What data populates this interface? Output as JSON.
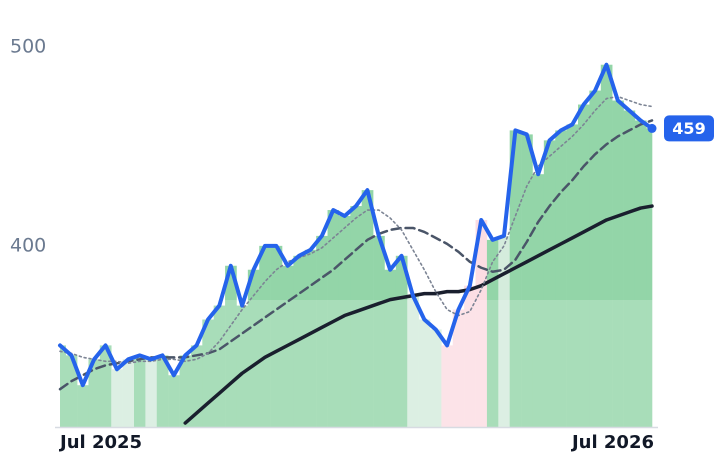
{
  "chart_data": {
    "type": "line",
    "categories": [
      "Jul 2025",
      null,
      null,
      null,
      null,
      null,
      null,
      null,
      null,
      null,
      null,
      null,
      null,
      null,
      null,
      null,
      null,
      null,
      null,
      null,
      null,
      null,
      null,
      null,
      null,
      null,
      null,
      null,
      null,
      null,
      null,
      null,
      null,
      null,
      null,
      null,
      null,
      null,
      null,
      null,
      null,
      null,
      null,
      null,
      null,
      null,
      null,
      null,
      null,
      null,
      null,
      null,
      "Jul 2026"
    ],
    "series": [
      {
        "color": "#2563eb",
        "style": "solid",
        "width": 4,
        "values": [
          350,
          345,
          330,
          343,
          350,
          338,
          343,
          345,
          343,
          345,
          335,
          345,
          350,
          363,
          370,
          390,
          370,
          388,
          400,
          400,
          390,
          395,
          398,
          405,
          418,
          415,
          420,
          428,
          405,
          388,
          395,
          375,
          363,
          358,
          350,
          368,
          380,
          413,
          403,
          405,
          458,
          456,
          436,
          453,
          458,
          461,
          471,
          478,
          491,
          473,
          468,
          463,
          459
        ]
      },
      {
        "color": "#7c8494",
        "style": "dotted",
        "width": 1.6,
        "values": [
          347,
          346,
          344,
          343,
          342,
          342,
          341,
          342,
          342,
          343,
          343,
          342,
          343,
          346,
          352,
          360,
          368,
          375,
          382,
          388,
          392,
          394,
          396,
          399,
          404,
          409,
          414,
          418,
          418,
          414,
          408,
          398,
          388,
          377,
          368,
          365,
          367,
          378,
          392,
          400,
          415,
          430,
          440,
          445,
          450,
          455,
          461,
          468,
          474,
          475,
          473,
          471,
          470
        ]
      },
      {
        "color": "#4a5568",
        "style": "dashed",
        "width": 2.5,
        "values": [
          328,
          332,
          335,
          338,
          340,
          341,
          342,
          343,
          344,
          344,
          344,
          344,
          345,
          346,
          348,
          352,
          356,
          360,
          364,
          368,
          372,
          376,
          380,
          384,
          388,
          393,
          398,
          403,
          406,
          408,
          409,
          409,
          407,
          404,
          401,
          397,
          392,
          389,
          387,
          388,
          393,
          402,
          412,
          420,
          427,
          433,
          440,
          446,
          451,
          455,
          458,
          461,
          463
        ]
      },
      {
        "color": "#1a1f2e",
        "style": "solid",
        "width": 3.5,
        "values": [
          null,
          null,
          null,
          null,
          null,
          null,
          null,
          null,
          null,
          null,
          null,
          311,
          316,
          321,
          326,
          331,
          336,
          340,
          344,
          347,
          350,
          353,
          356,
          359,
          362,
          365,
          367,
          369,
          371,
          373,
          374,
          375,
          376,
          376,
          377,
          377,
          378,
          380,
          383,
          386,
          389,
          392,
          395,
          398,
          401,
          404,
          407,
          410,
          413,
          415,
          417,
          419,
          420
        ]
      }
    ],
    "area_colors": [
      "#93d5a8",
      "#93d5a8",
      "#93d5a8",
      "#93d5a8",
      "#93d5a8",
      "#d4ecdc",
      "#d4ecdc",
      "#93d5a8",
      "#d4ecdc",
      "#93d5a8",
      "#93d5a8",
      "#93d5a8",
      "#93d5a8",
      "#93d5a8",
      "#93d5a8",
      "#93d5a8",
      "#93d5a8",
      "#93d5a8",
      "#93d5a8",
      "#93d5a8",
      "#93d5a8",
      "#93d5a8",
      "#93d5a8",
      "#93d5a8",
      "#93d5a8",
      "#93d5a8",
      "#93d5a8",
      "#93d5a8",
      "#93d5a8",
      "#93d5a8",
      "#93d5a8",
      "#d4ecdc",
      "#d4ecdc",
      "#d4ecdc",
      "#fcdde3",
      "#fcdde3",
      "#fcdde3",
      "#fcdde3",
      "#93d5a8",
      "#d4ecdc",
      "#93d5a8",
      "#93d5a8",
      "#93d5a8",
      "#93d5a8",
      "#93d5a8",
      "#93d5a8",
      "#93d5a8",
      "#93d5a8",
      "#93d5a8",
      "#93d5a8",
      "#93d5a8",
      "#93d5a8",
      "#93d5a8"
    ],
    "badge_color": "#2563eb",
    "ylim": [
      310,
      520
    ],
    "yticks": [
      400,
      500
    ],
    "grid": false
  }
}
